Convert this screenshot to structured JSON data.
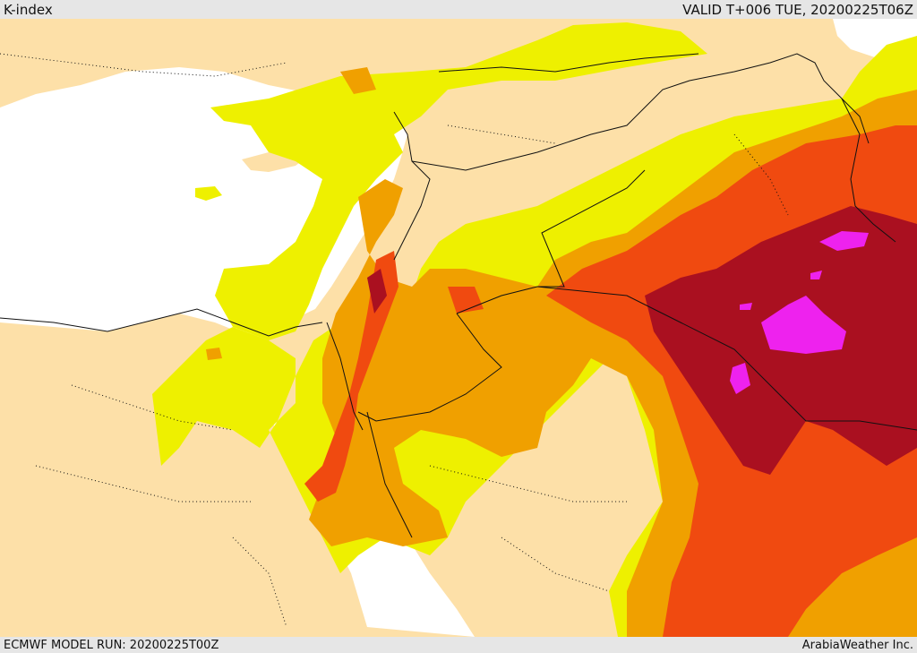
{
  "header": {
    "title": "K-index",
    "valid_time": "VALID T+006 TUE, 20200225T06Z"
  },
  "footer": {
    "model_run": "ECMWF MODEL RUN: 20200225T00Z",
    "credit": "ArabiaWeather Inc."
  },
  "colors": {
    "land": "#fde0a8",
    "sea": "#ffffff",
    "level_1": "#eef000",
    "level_2": "#f0a000",
    "level_3": "#f04a10",
    "level_4": "#aa1020",
    "level_5": "#ee22ee",
    "border": "#111111"
  }
}
